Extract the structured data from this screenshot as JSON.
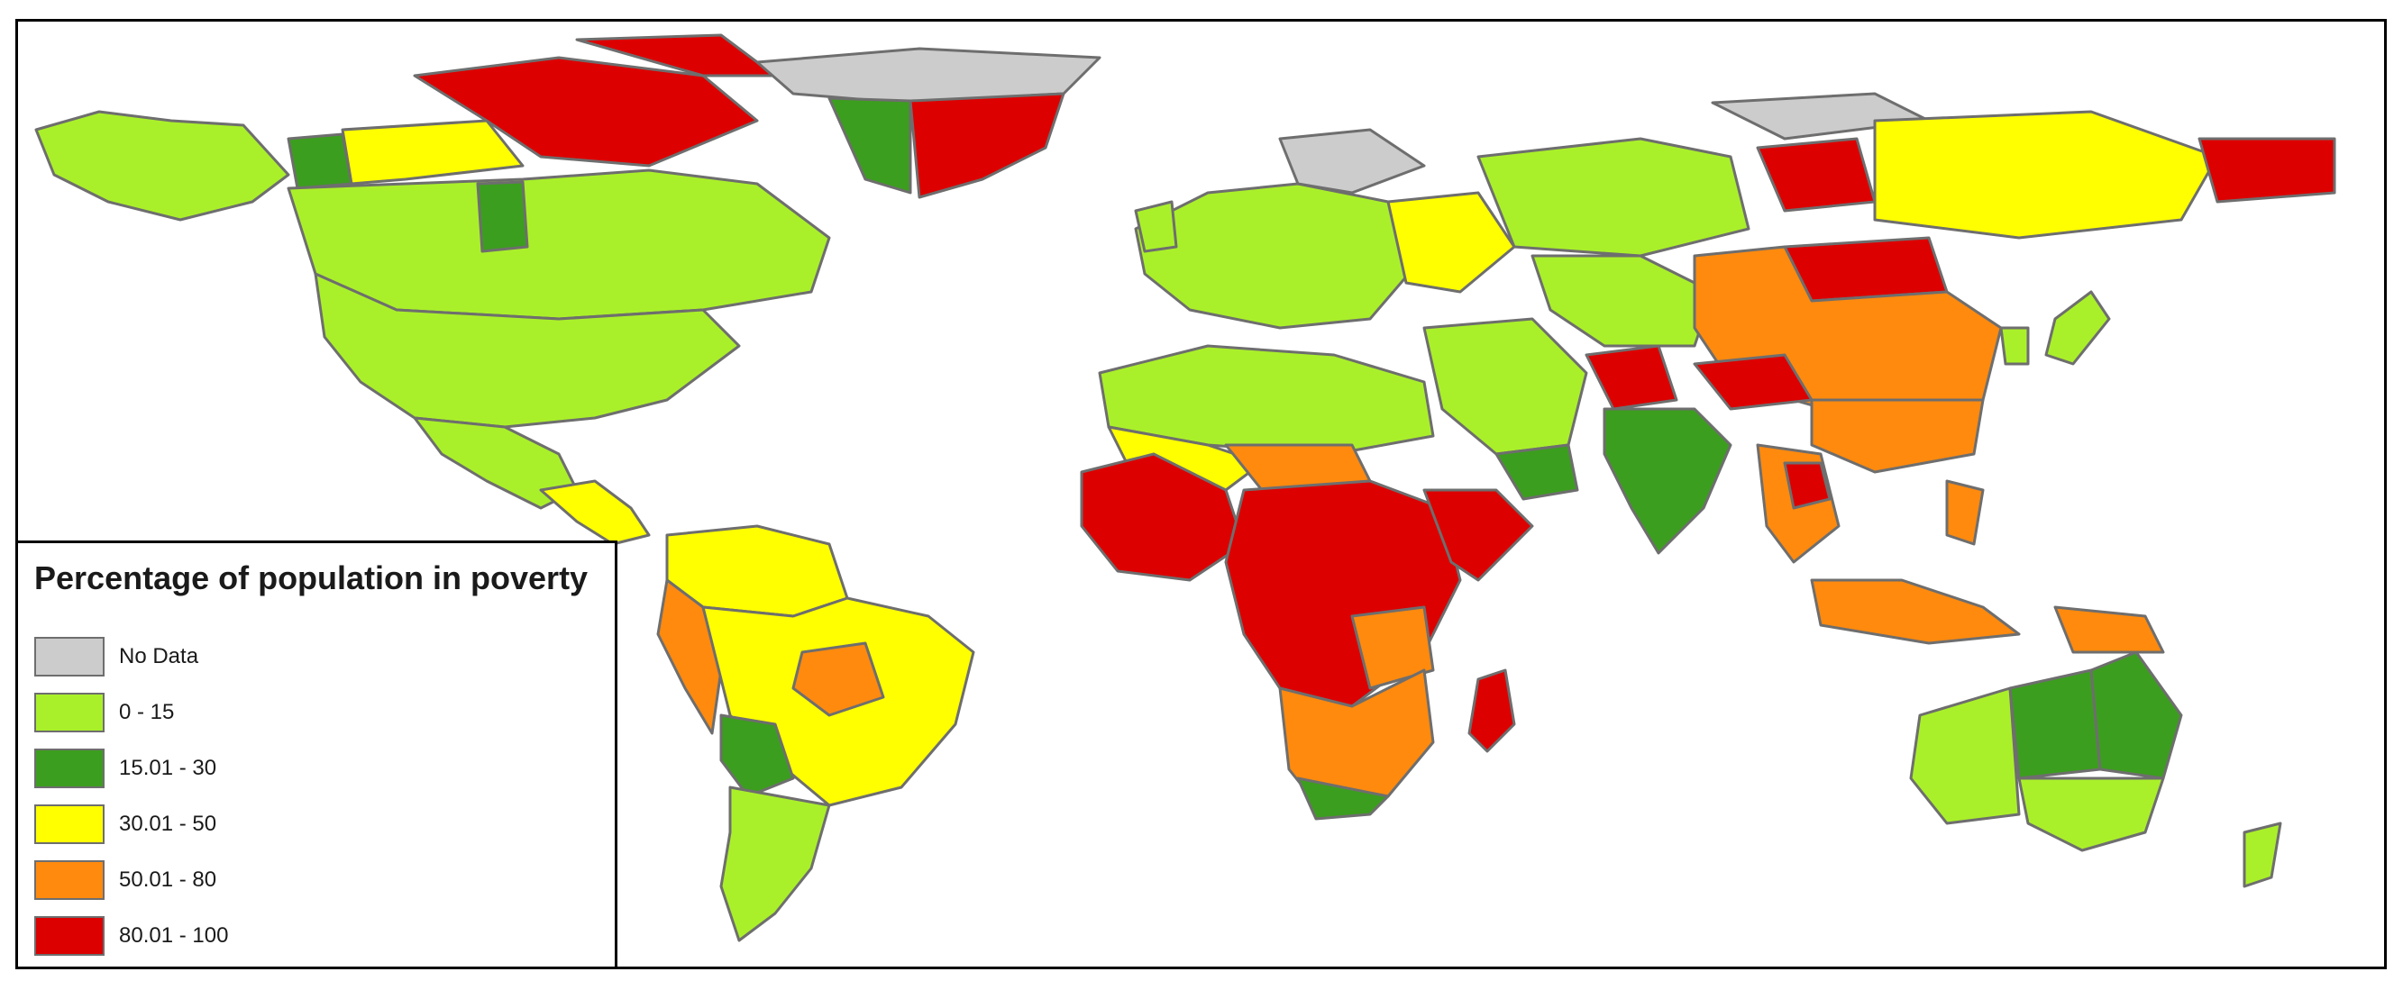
{
  "legend": {
    "title": "Percentage of population in poverty",
    "classes": [
      {
        "label": "No Data",
        "color": "#cccccc"
      },
      {
        "label": "0 - 15",
        "color": "#aaf02a"
      },
      {
        "label": "15.01 - 30",
        "color": "#3c9e1e"
      },
      {
        "label": "30.01 - 50",
        "color": "#ffff00"
      },
      {
        "label": "50.01 - 80",
        "color": "#ff8a0e"
      },
      {
        "label": "80.01 - 100",
        "color": "#dd0000"
      }
    ]
  },
  "map": {
    "regions": [
      {
        "name": "canada-arctic",
        "class": 1
      },
      {
        "name": "greenland",
        "class": 5
      },
      {
        "name": "usa",
        "class": 1
      },
      {
        "name": "mexico",
        "class": 1
      },
      {
        "name": "central-america",
        "class": 3
      },
      {
        "name": "south-america-north",
        "class": 3
      },
      {
        "name": "brazil",
        "class": 3
      },
      {
        "name": "south-america-south",
        "class": 1
      },
      {
        "name": "europe",
        "class": 1
      },
      {
        "name": "north-africa",
        "class": 3
      },
      {
        "name": "sub-saharan-africa",
        "class": 5
      },
      {
        "name": "southern-africa",
        "class": 4
      },
      {
        "name": "madagascar",
        "class": 5
      },
      {
        "name": "middle-east",
        "class": 1
      },
      {
        "name": "russia",
        "class": 3
      },
      {
        "name": "central-asia",
        "class": 4
      },
      {
        "name": "china",
        "class": 4
      },
      {
        "name": "india",
        "class": 2
      },
      {
        "name": "southeast-asia",
        "class": 4
      },
      {
        "name": "australia",
        "class": 1
      },
      {
        "name": "new-zealand",
        "class": 1
      }
    ]
  }
}
